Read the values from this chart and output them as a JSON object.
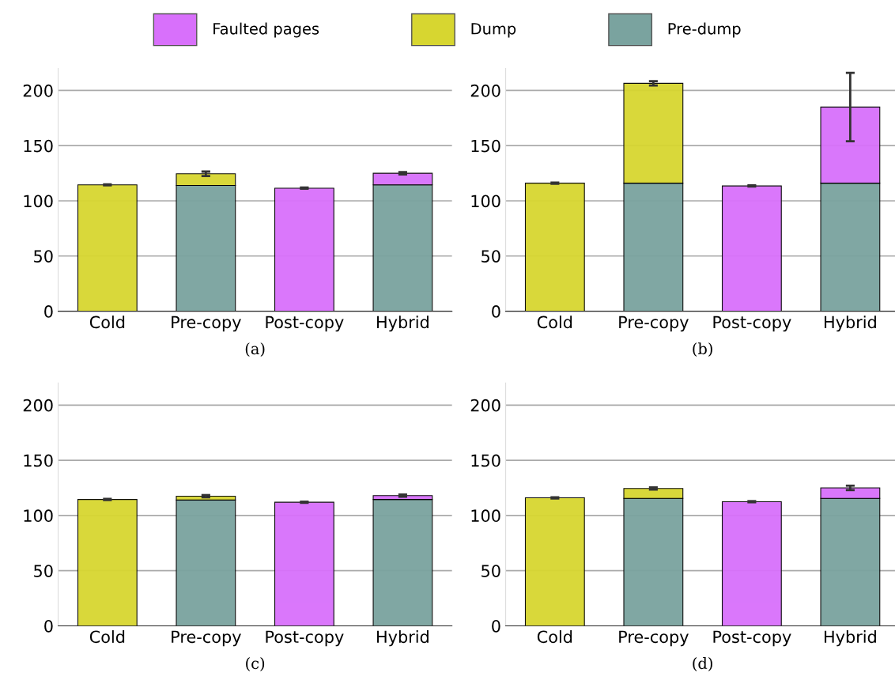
{
  "chart_data": [
    {
      "type": "bar",
      "stacked": true,
      "xlabel": "(a)",
      "categories": [
        "Cold",
        "Pre-copy",
        "Post-copy",
        "Hybrid"
      ],
      "ylim": [
        0,
        220
      ],
      "yticks": [
        0,
        50,
        100,
        150,
        200
      ],
      "grid": "y",
      "legend": "top",
      "series": [
        {
          "name": "Pre-dump",
          "color": "#7aa39f",
          "values": [
            null,
            114,
            null,
            114.5
          ]
        },
        {
          "name": "Dump",
          "color": "#d7d630",
          "values": [
            114.5,
            10.5,
            null,
            null
          ],
          "errors": [
            0.5,
            2,
            null,
            null
          ]
        },
        {
          "name": "Faulted pages",
          "color": "#d870fb",
          "values": [
            null,
            null,
            111.5,
            10.5
          ],
          "errors": [
            null,
            null,
            0.5,
            1
          ]
        }
      ]
    },
    {
      "type": "bar",
      "stacked": true,
      "xlabel": "(b)",
      "categories": [
        "Cold",
        "Pre-copy",
        "Post-copy",
        "Hybrid"
      ],
      "ylim": [
        0,
        220
      ],
      "yticks": [
        0,
        50,
        100,
        150,
        200
      ],
      "grid": "y",
      "series": [
        {
          "color": "#7aa39f",
          "values": [
            null,
            116,
            null,
            116
          ]
        },
        {
          "color": "#d7d630",
          "values": [
            116,
            90.5,
            null,
            null
          ],
          "errors": [
            0.5,
            2,
            null,
            null
          ]
        },
        {
          "color": "#d870fb",
          "values": [
            null,
            null,
            113.5,
            69
          ],
          "errors": [
            null,
            null,
            0.5,
            31
          ]
        }
      ]
    },
    {
      "type": "bar",
      "stacked": true,
      "xlabel": "(c)",
      "categories": [
        "Cold",
        "Pre-copy",
        "Post-copy",
        "Hybrid"
      ],
      "ylim": [
        0,
        220
      ],
      "yticks": [
        0,
        50,
        100,
        150,
        200
      ],
      "grid": "y",
      "series": [
        {
          "color": "#7aa39f",
          "values": [
            null,
            114,
            null,
            114.5
          ]
        },
        {
          "color": "#d7d630",
          "values": [
            114.5,
            3.5,
            null,
            null
          ],
          "errors": [
            0.5,
            1,
            null,
            null
          ]
        },
        {
          "color": "#d870fb",
          "values": [
            null,
            null,
            112,
            3.5
          ],
          "errors": [
            null,
            null,
            0.5,
            1
          ]
        }
      ]
    },
    {
      "type": "bar",
      "stacked": true,
      "xlabel": "(d)",
      "categories": [
        "Cold",
        "Pre-copy",
        "Post-copy",
        "Hybrid"
      ],
      "ylim": [
        0,
        220
      ],
      "yticks": [
        0,
        50,
        100,
        150,
        200
      ],
      "grid": "y",
      "series": [
        {
          "color": "#7aa39f",
          "values": [
            null,
            115.5,
            null,
            115.5
          ]
        },
        {
          "color": "#d7d630",
          "values": [
            116,
            9,
            null,
            null
          ],
          "errors": [
            0.5,
            1,
            null,
            null
          ]
        },
        {
          "color": "#d870fb",
          "values": [
            null,
            null,
            112.5,
            9.5
          ],
          "errors": [
            null,
            null,
            0.5,
            2
          ]
        }
      ]
    }
  ]
}
